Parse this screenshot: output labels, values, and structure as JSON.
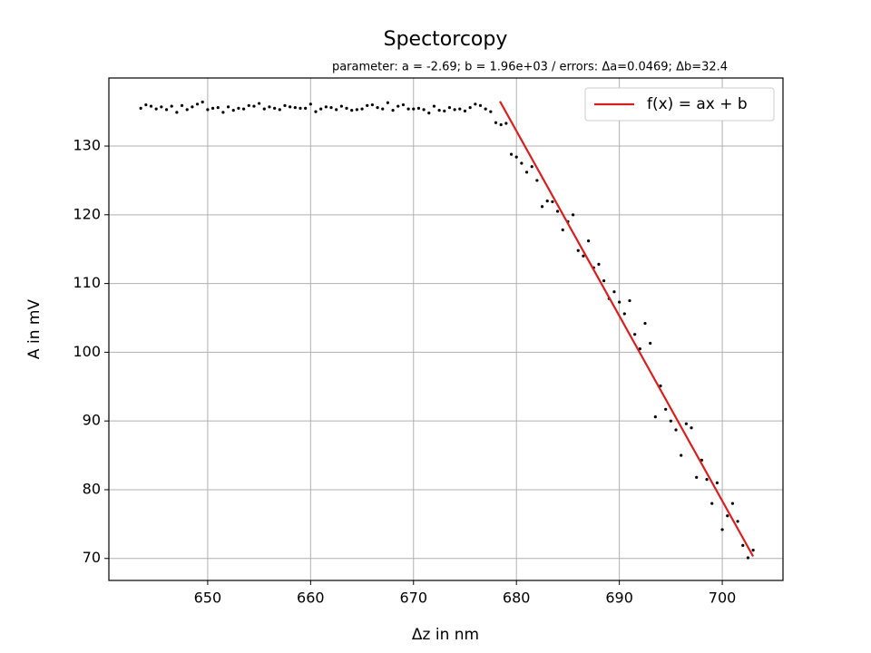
{
  "chart_data": {
    "type": "scatter",
    "title": "Spectorcopy",
    "subtitle": "parameter: a = -2.69; b = 1.96e+03 / errors: Δa=0.0469; Δb=32.4",
    "x_label": "Δz in nm",
    "y_label": "A in mV",
    "xlim": [
      640.4,
      705.9
    ],
    "ylim": [
      66.8,
      139.9
    ],
    "xticks": [
      650,
      660,
      670,
      680,
      690,
      700
    ],
    "yticks": [
      70,
      80,
      90,
      100,
      110,
      120,
      130
    ],
    "grid": true,
    "legend": "upper right",
    "points": {
      "color": "#000000",
      "x": [
        643.5,
        644.0,
        644.5,
        645.0,
        645.5,
        646.0,
        646.5,
        647.0,
        647.5,
        648.0,
        648.5,
        649.0,
        649.5,
        650.0,
        650.5,
        651.0,
        651.5,
        652.0,
        652.5,
        653.0,
        653.5,
        654.0,
        654.5,
        655.0,
        655.5,
        656.0,
        656.5,
        657.0,
        657.5,
        658.0,
        658.5,
        659.0,
        659.5,
        660.0,
        660.5,
        661.0,
        661.5,
        662.0,
        662.5,
        663.0,
        663.5,
        664.0,
        664.5,
        665.0,
        665.5,
        666.0,
        666.5,
        667.0,
        667.5,
        668.0,
        668.5,
        669.0,
        669.5,
        670.0,
        670.5,
        671.0,
        671.5,
        672.0,
        672.5,
        673.0,
        673.5,
        674.0,
        674.5,
        675.0,
        675.5,
        676.0,
        676.5,
        677.0,
        677.5,
        678.0,
        678.5,
        679.0,
        679.5,
        680.0,
        680.5,
        681.0,
        681.5,
        682.0,
        682.5,
        683.0,
        683.5,
        684.0,
        684.5,
        685.0,
        685.5,
        686.0,
        686.5,
        687.0,
        687.5,
        688.0,
        688.5,
        689.0,
        689.5,
        690.0,
        690.5,
        691.0,
        691.5,
        692.0,
        692.5,
        693.0,
        693.5,
        694.0,
        694.5,
        695.0,
        695.5,
        696.0,
        696.5,
        697.0,
        697.5,
        698.0,
        698.5,
        699.0,
        699.5,
        700.0,
        700.5,
        701.0,
        701.5,
        702.0,
        702.5,
        703.0
      ],
      "y": [
        135.5,
        136.0,
        135.8,
        135.4,
        135.7,
        135.3,
        135.8,
        134.9,
        135.9,
        135.3,
        135.7,
        136.1,
        136.4,
        135.3,
        135.5,
        135.6,
        134.9,
        135.7,
        135.2,
        135.5,
        135.4,
        135.9,
        135.8,
        136.2,
        135.4,
        135.7,
        135.5,
        135.3,
        135.9,
        135.7,
        135.6,
        135.5,
        135.5,
        136.1,
        135.0,
        135.4,
        135.7,
        135.6,
        135.3,
        135.8,
        135.5,
        135.2,
        135.3,
        135.4,
        135.9,
        136.0,
        135.6,
        135.4,
        136.3,
        135.2,
        135.8,
        136.0,
        135.4,
        135.4,
        135.5,
        135.3,
        134.8,
        135.8,
        135.2,
        135.1,
        135.6,
        135.3,
        135.4,
        135.1,
        135.6,
        136.1,
        135.9,
        135.4,
        135.0,
        133.4,
        133.1,
        133.3,
        128.8,
        128.4,
        127.5,
        126.2,
        127.0,
        125.0,
        121.2,
        122.0,
        121.9,
        120.5,
        117.8,
        119.0,
        120.0,
        114.8,
        114.0,
        116.2,
        112.3,
        112.8,
        110.4,
        107.8,
        108.8,
        107.3,
        105.6,
        107.5,
        102.6,
        100.5,
        104.2,
        101.3,
        90.6,
        95.1,
        91.7,
        90.0,
        88.7,
        85.0,
        89.6,
        89.0,
        81.8,
        84.3,
        81.5,
        78.0,
        81.0,
        74.2,
        76.2,
        78.0,
        75.4,
        71.9,
        70.1,
        71.2
      ]
    },
    "fit": {
      "name": "f(x) = ax + b",
      "color": "#d62020",
      "x": [
        678.4,
        703.0
      ],
      "y": [
        136.5,
        70.3
      ]
    }
  }
}
